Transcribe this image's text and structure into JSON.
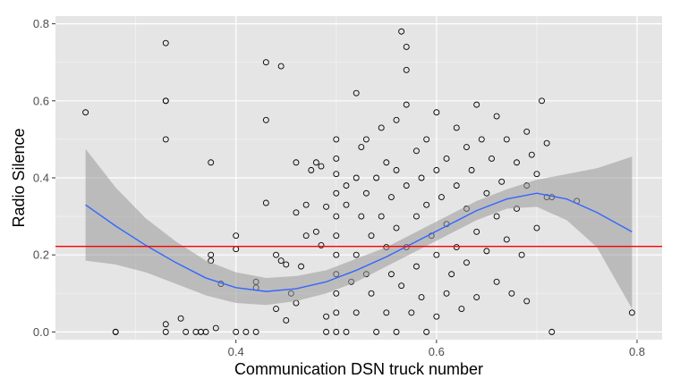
{
  "chart_data": {
    "type": "scatter",
    "xlabel": "Communication DSN truck number",
    "ylabel": "Radio Silence",
    "xlim": [
      0.22,
      0.825
    ],
    "ylim": [
      -0.02,
      0.82
    ],
    "x_ticks": [
      0.4,
      0.6,
      0.8
    ],
    "x_tick_labels": [
      "0.4",
      "0.6",
      "0.8"
    ],
    "y_ticks": [
      0.0,
      0.2,
      0.4,
      0.6,
      0.8
    ],
    "y_tick_labels": [
      "0.0",
      "0.2",
      "0.4",
      "0.6",
      "0.8"
    ],
    "grid": true,
    "colors": {
      "panel": "#e5e5e5",
      "grid": "#ffffff",
      "points": "#000000",
      "smooth_line": "#3366ff",
      "confidence_band": "#999999",
      "reference_line": "#ff0000"
    },
    "reference_line": {
      "y": 0.222
    },
    "smooth": {
      "x": [
        0.25,
        0.28,
        0.31,
        0.34,
        0.37,
        0.4,
        0.43,
        0.46,
        0.49,
        0.52,
        0.55,
        0.58,
        0.61,
        0.64,
        0.67,
        0.7,
        0.73,
        0.76,
        0.795
      ],
      "y": [
        0.33,
        0.275,
        0.225,
        0.18,
        0.14,
        0.115,
        0.105,
        0.112,
        0.13,
        0.16,
        0.195,
        0.235,
        0.275,
        0.315,
        0.345,
        0.36,
        0.345,
        0.31,
        0.26
      ],
      "lower": [
        0.185,
        0.175,
        0.155,
        0.125,
        0.095,
        0.075,
        0.07,
        0.08,
        0.1,
        0.13,
        0.17,
        0.21,
        0.25,
        0.29,
        0.32,
        0.325,
        0.29,
        0.22,
        0.06
      ],
      "upper": [
        0.475,
        0.375,
        0.295,
        0.235,
        0.185,
        0.155,
        0.14,
        0.145,
        0.16,
        0.19,
        0.22,
        0.26,
        0.3,
        0.34,
        0.37,
        0.395,
        0.41,
        0.425,
        0.455
      ]
    },
    "points": [
      [
        0.25,
        0.57
      ],
      [
        0.28,
        0.0
      ],
      [
        0.28,
        0.0
      ],
      [
        0.33,
        0.75
      ],
      [
        0.33,
        0.6
      ],
      [
        0.33,
        0.6
      ],
      [
        0.33,
        0.5
      ],
      [
        0.33,
        0.02
      ],
      [
        0.33,
        0.0
      ],
      [
        0.345,
        0.035
      ],
      [
        0.35,
        0.0
      ],
      [
        0.36,
        0.0
      ],
      [
        0.365,
        0.0
      ],
      [
        0.37,
        0.0
      ],
      [
        0.375,
        0.44
      ],
      [
        0.375,
        0.2
      ],
      [
        0.375,
        0.185
      ],
      [
        0.38,
        0.01
      ],
      [
        0.385,
        0.125
      ],
      [
        0.4,
        0.25
      ],
      [
        0.4,
        0.215
      ],
      [
        0.4,
        0.0
      ],
      [
        0.41,
        0.0
      ],
      [
        0.42,
        0.13
      ],
      [
        0.42,
        0.115
      ],
      [
        0.42,
        0.0
      ],
      [
        0.43,
        0.7
      ],
      [
        0.43,
        0.55
      ],
      [
        0.43,
        0.335
      ],
      [
        0.445,
        0.69
      ],
      [
        0.44,
        0.2
      ],
      [
        0.445,
        0.185
      ],
      [
        0.44,
        0.06
      ],
      [
        0.45,
        0.175
      ],
      [
        0.45,
        0.03
      ],
      [
        0.455,
        0.1
      ],
      [
        0.46,
        0.44
      ],
      [
        0.46,
        0.31
      ],
      [
        0.465,
        0.17
      ],
      [
        0.46,
        0.075
      ],
      [
        0.47,
        0.25
      ],
      [
        0.47,
        0.33
      ],
      [
        0.475,
        0.42
      ],
      [
        0.48,
        0.26
      ],
      [
        0.48,
        0.44
      ],
      [
        0.485,
        0.43
      ],
      [
        0.485,
        0.225
      ],
      [
        0.49,
        0.325
      ],
      [
        0.49,
        0.04
      ],
      [
        0.49,
        0.0
      ],
      [
        0.5,
        0.5
      ],
      [
        0.5,
        0.45
      ],
      [
        0.5,
        0.41
      ],
      [
        0.5,
        0.36
      ],
      [
        0.5,
        0.3
      ],
      [
        0.5,
        0.25
      ],
      [
        0.5,
        0.2
      ],
      [
        0.5,
        0.15
      ],
      [
        0.5,
        0.1
      ],
      [
        0.5,
        0.05
      ],
      [
        0.5,
        0.0
      ],
      [
        0.51,
        0.38
      ],
      [
        0.51,
        0.33
      ],
      [
        0.51,
        0.0
      ],
      [
        0.515,
        0.13
      ],
      [
        0.52,
        0.62
      ],
      [
        0.52,
        0.4
      ],
      [
        0.52,
        0.2
      ],
      [
        0.52,
        0.05
      ],
      [
        0.525,
        0.48
      ],
      [
        0.525,
        0.3
      ],
      [
        0.53,
        0.5
      ],
      [
        0.53,
        0.36
      ],
      [
        0.53,
        0.15
      ],
      [
        0.535,
        0.25
      ],
      [
        0.535,
        0.1
      ],
      [
        0.54,
        0.4
      ],
      [
        0.54,
        0.0
      ],
      [
        0.545,
        0.53
      ],
      [
        0.545,
        0.3
      ],
      [
        0.55,
        0.44
      ],
      [
        0.55,
        0.22
      ],
      [
        0.55,
        0.05
      ],
      [
        0.555,
        0.35
      ],
      [
        0.555,
        0.15
      ],
      [
        0.56,
        0.55
      ],
      [
        0.56,
        0.42
      ],
      [
        0.56,
        0.27
      ],
      [
        0.56,
        0.0
      ],
      [
        0.565,
        0.78
      ],
      [
        0.565,
        0.12
      ],
      [
        0.57,
        0.74
      ],
      [
        0.57,
        0.68
      ],
      [
        0.57,
        0.59
      ],
      [
        0.57,
        0.38
      ],
      [
        0.57,
        0.22
      ],
      [
        0.575,
        0.05
      ],
      [
        0.58,
        0.47
      ],
      [
        0.58,
        0.3
      ],
      [
        0.58,
        0.17
      ],
      [
        0.585,
        0.4
      ],
      [
        0.585,
        0.09
      ],
      [
        0.59,
        0.5
      ],
      [
        0.59,
        0.33
      ],
      [
        0.59,
        0.0
      ],
      [
        0.595,
        0.25
      ],
      [
        0.6,
        0.57
      ],
      [
        0.6,
        0.42
      ],
      [
        0.6,
        0.2
      ],
      [
        0.6,
        0.04
      ],
      [
        0.605,
        0.35
      ],
      [
        0.61,
        0.45
      ],
      [
        0.61,
        0.28
      ],
      [
        0.61,
        0.1
      ],
      [
        0.615,
        0.15
      ],
      [
        0.62,
        0.53
      ],
      [
        0.62,
        0.38
      ],
      [
        0.62,
        0.22
      ],
      [
        0.625,
        0.06
      ],
      [
        0.63,
        0.48
      ],
      [
        0.63,
        0.32
      ],
      [
        0.63,
        0.18
      ],
      [
        0.635,
        0.42
      ],
      [
        0.64,
        0.59
      ],
      [
        0.64,
        0.26
      ],
      [
        0.64,
        0.09
      ],
      [
        0.645,
        0.5
      ],
      [
        0.65,
        0.36
      ],
      [
        0.65,
        0.21
      ],
      [
        0.655,
        0.45
      ],
      [
        0.66,
        0.56
      ],
      [
        0.66,
        0.3
      ],
      [
        0.66,
        0.13
      ],
      [
        0.665,
        0.39
      ],
      [
        0.67,
        0.5
      ],
      [
        0.67,
        0.24
      ],
      [
        0.675,
        0.1
      ],
      [
        0.68,
        0.44
      ],
      [
        0.68,
        0.32
      ],
      [
        0.685,
        0.2
      ],
      [
        0.69,
        0.52
      ],
      [
        0.69,
        0.38
      ],
      [
        0.69,
        0.08
      ],
      [
        0.695,
        0.46
      ],
      [
        0.7,
        0.41
      ],
      [
        0.7,
        0.27
      ],
      [
        0.705,
        0.6
      ],
      [
        0.71,
        0.49
      ],
      [
        0.71,
        0.35
      ],
      [
        0.715,
        0.35
      ],
      [
        0.715,
        0.0
      ],
      [
        0.74,
        0.34
      ],
      [
        0.795,
        0.05
      ]
    ]
  }
}
